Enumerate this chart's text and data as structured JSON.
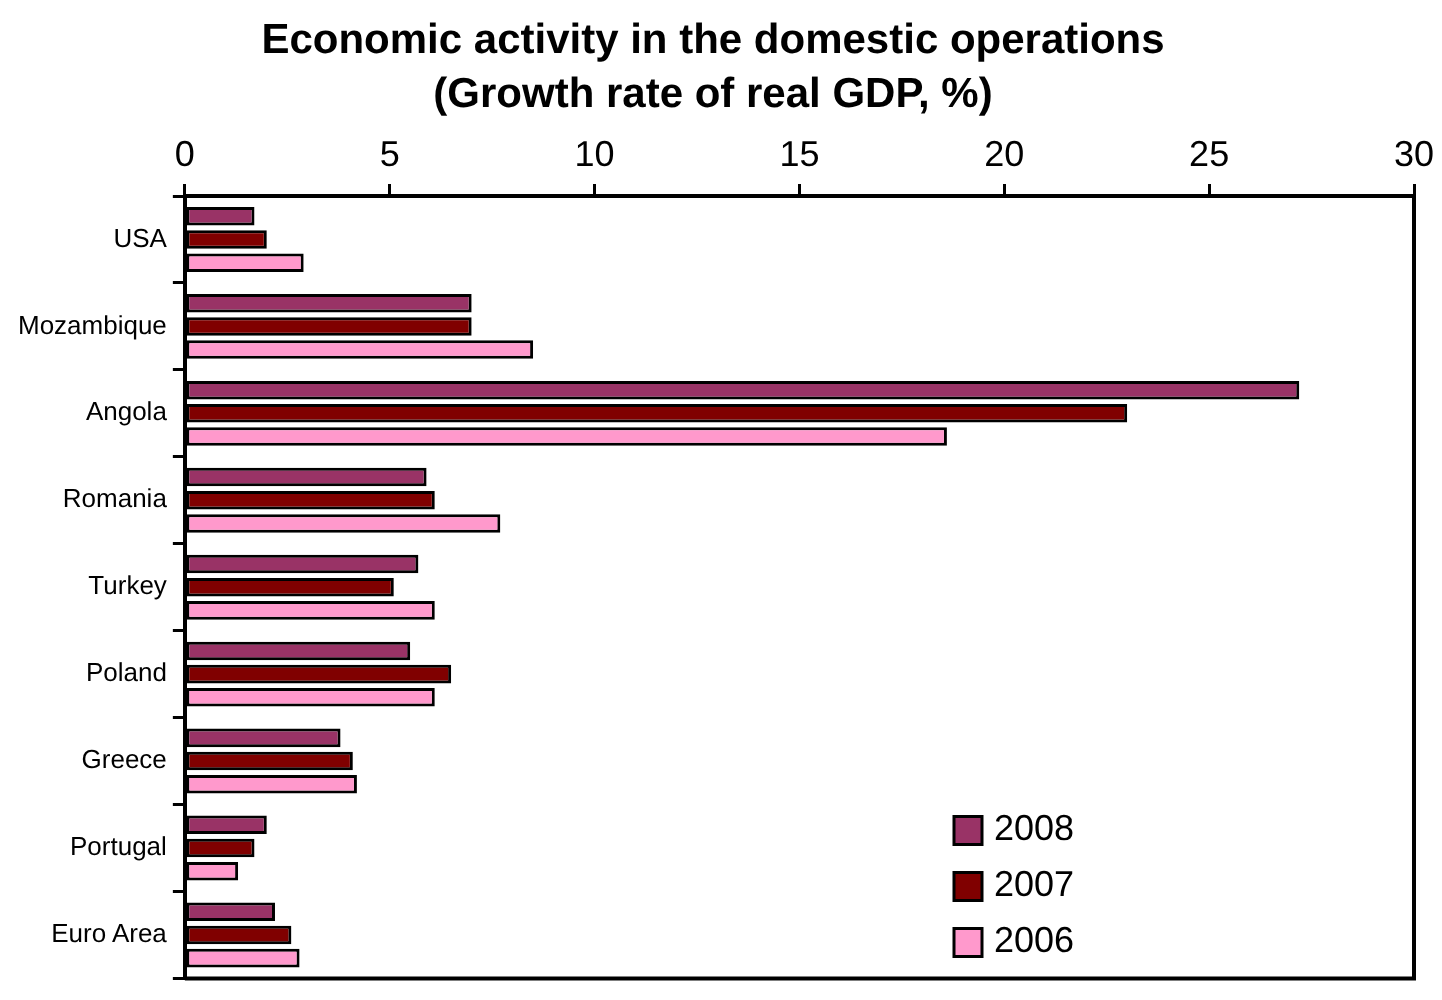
{
  "chart_data": {
    "type": "bar",
    "orientation": "horizontal",
    "title": "Economic activity in the domestic operations",
    "subtitle": "(Growth rate of real GDP, %)",
    "categories": [
      "USA",
      "Mozambique",
      "Angola",
      "Romania",
      "Turkey",
      "Poland",
      "Greece",
      "Portugal",
      "Euro Area"
    ],
    "series": [
      {
        "name": "2008",
        "color": "#993366",
        "values": [
          1.7,
          7.0,
          27.2,
          5.9,
          5.7,
          5.5,
          3.8,
          2.0,
          2.2
        ]
      },
      {
        "name": "2007",
        "color": "#800000",
        "values": [
          2.0,
          7.0,
          23.0,
          6.1,
          5.1,
          6.5,
          4.1,
          1.7,
          2.6
        ]
      },
      {
        "name": "2006",
        "color": "#ff99cc",
        "values": [
          2.9,
          8.5,
          18.6,
          7.7,
          6.1,
          6.1,
          4.2,
          1.3,
          2.8
        ]
      }
    ],
    "xlim": [
      0,
      30
    ],
    "xticks": [
      0,
      5,
      10,
      15,
      20,
      25,
      30
    ],
    "grid": false,
    "legend": "bottom right"
  }
}
